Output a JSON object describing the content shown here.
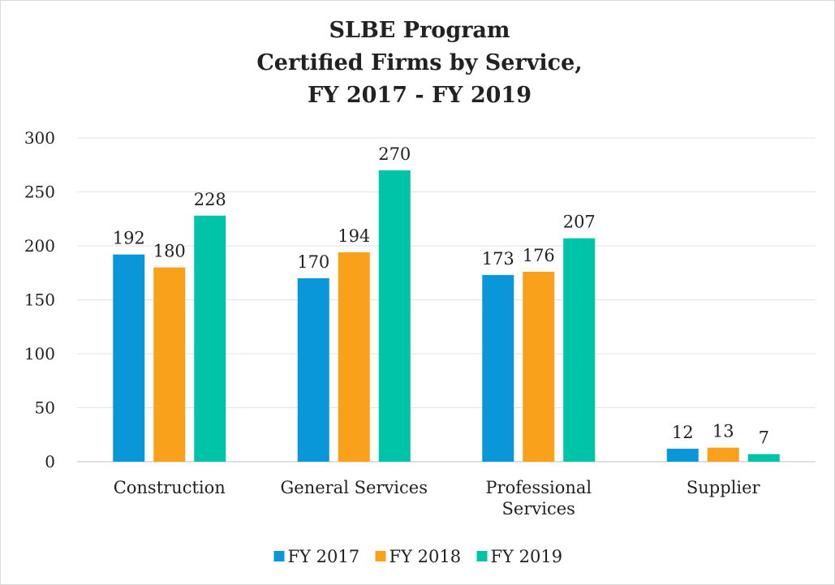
{
  "chart_data": {
    "type": "bar",
    "title": [
      "SLBE Program",
      "Certified Firms by Service,",
      "FY 2017 - FY 2019"
    ],
    "categories": [
      "Construction",
      "General Services",
      "Professional Services",
      "Supplier"
    ],
    "series": [
      {
        "name": "FY 2017",
        "color": "#0a97d9",
        "values": [
          192,
          170,
          173,
          12
        ]
      },
      {
        "name": "FY 2018",
        "color": "#f9a11b",
        "values": [
          180,
          194,
          176,
          13
        ]
      },
      {
        "name": "FY 2019",
        "color": "#00c4a8",
        "values": [
          228,
          270,
          207,
          7
        ]
      }
    ],
    "ylim": [
      0,
      300
    ],
    "yticks": [
      0,
      50,
      100,
      150,
      200,
      250,
      300
    ],
    "grid": true,
    "legend": "bottom"
  }
}
